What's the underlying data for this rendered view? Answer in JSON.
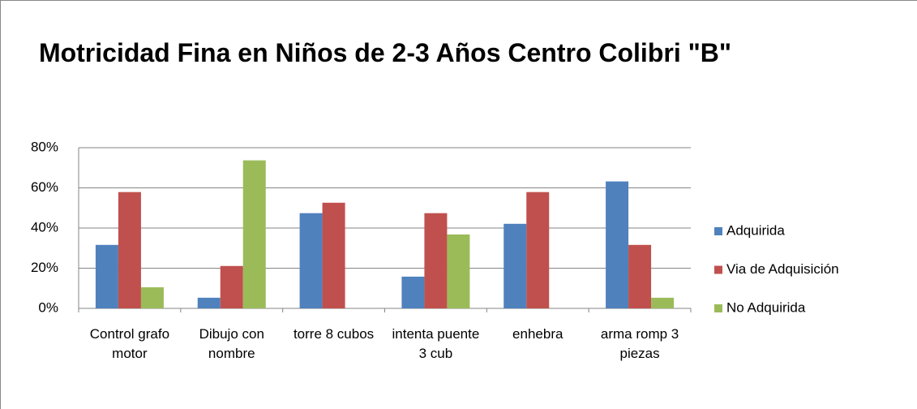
{
  "chart_data": {
    "type": "bar",
    "title": "Motricidad Fina en Niños de 2-3 Años Centro Colibri \"B\"",
    "categories": [
      "Control grafo motor",
      "Dibujo con nombre",
      "torre 8 cubos",
      "intenta puente 3 cub",
      "enhebra",
      "arma romp 3 piezas"
    ],
    "series": [
      {
        "name": "Adquirida",
        "color": "#4f81bd",
        "values": [
          31.6,
          5.3,
          47.4,
          15.8,
          42.1,
          63.2
        ]
      },
      {
        "name": "Via de Adquisición",
        "color": "#c0504d",
        "values": [
          57.9,
          21.1,
          52.6,
          47.4,
          57.9,
          31.6
        ]
      },
      {
        "name": "No Adquirida",
        "color": "#9bbb59",
        "values": [
          10.5,
          73.7,
          0,
          36.8,
          0,
          5.3
        ]
      }
    ],
    "ylim": [
      0,
      80
    ],
    "yticks": [
      {
        "value": 0,
        "label": "0%"
      },
      {
        "value": 20,
        "label": "20%"
      },
      {
        "value": 40,
        "label": "40%"
      },
      {
        "value": 60,
        "label": "60%"
      },
      {
        "value": 80,
        "label": "80%"
      }
    ],
    "grid": true,
    "legend": "right"
  }
}
